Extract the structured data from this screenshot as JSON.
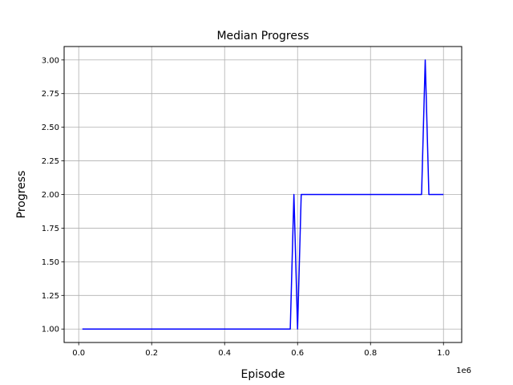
{
  "chart_data": {
    "type": "line",
    "title": "Median Progress",
    "xlabel": "Episode",
    "ylabel": "Progress",
    "x_offset_label": "1e6",
    "xlim": [
      -0.04,
      1.05
    ],
    "ylim": [
      0.9,
      3.1
    ],
    "x_ticks": [
      0.0,
      0.2,
      0.4,
      0.6,
      0.8,
      1.0
    ],
    "x_tick_labels": [
      "0.0",
      "0.2",
      "0.4",
      "0.6",
      "0.8",
      "1.0"
    ],
    "y_ticks": [
      1.0,
      1.25,
      1.5,
      1.75,
      2.0,
      2.25,
      2.5,
      2.75,
      3.0
    ],
    "y_tick_labels": [
      "1.00",
      "1.25",
      "1.50",
      "1.75",
      "2.00",
      "2.25",
      "2.50",
      "2.75",
      "3.00"
    ],
    "grid": true,
    "series": [
      {
        "color": "#0000ff",
        "x": [
          0.01,
          0.58,
          0.59,
          0.6,
          0.61,
          0.94,
          0.95,
          0.96,
          1.0
        ],
        "y": [
          1.0,
          1.0,
          2.0,
          1.0,
          2.0,
          2.0,
          3.0,
          2.0,
          2.0
        ]
      }
    ]
  }
}
